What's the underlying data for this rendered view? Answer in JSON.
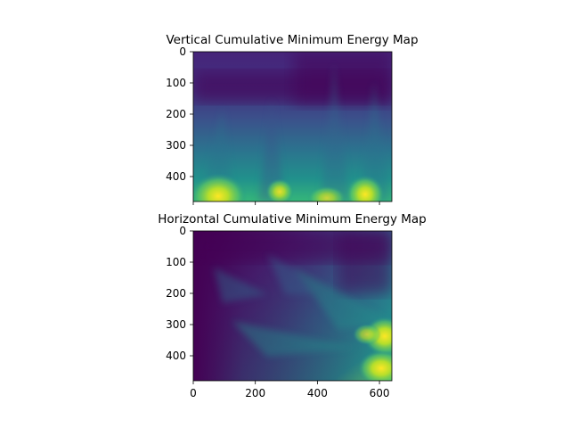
{
  "chart_data": [
    {
      "type": "heatmap",
      "title": "Vertical Cumulative Minimum Energy Map",
      "xlim": [
        0,
        640
      ],
      "ylim": [
        480,
        0
      ],
      "x_ticks": [
        0,
        200,
        400,
        600
      ],
      "x_tick_labels_visible": false,
      "y_ticks": [
        0,
        100,
        200,
        300,
        400
      ],
      "y_tick_labels": [
        "0",
        "100",
        "200",
        "300",
        "400"
      ],
      "colormap": "viridis",
      "color_low": "#440154",
      "color_high": "#fde725",
      "hotspots": [
        {
          "x": 80,
          "y": 470,
          "level": 1.0
        },
        {
          "x": 280,
          "y": 460,
          "level": 0.85
        },
        {
          "x": 450,
          "y": 470,
          "level": 0.8
        },
        {
          "x": 560,
          "y": 470,
          "level": 0.95
        }
      ],
      "low_band_y": [
        60,
        150
      ]
    },
    {
      "type": "heatmap",
      "title": "Horizontal Cumulative Minimum Energy Map",
      "xlim": [
        0,
        640
      ],
      "ylim": [
        480,
        0
      ],
      "x_ticks": [
        0,
        200,
        400,
        600
      ],
      "x_tick_labels": [
        "0",
        "200",
        "400",
        "600"
      ],
      "y_ticks": [
        0,
        100,
        200,
        300,
        400
      ],
      "y_tick_labels": [
        "0",
        "100",
        "200",
        "300",
        "400"
      ],
      "colormap": "viridis",
      "color_low": "#440154",
      "color_high": "#fde725",
      "hotspots": [
        {
          "x": 620,
          "y": 340,
          "level": 1.0
        },
        {
          "x": 600,
          "y": 440,
          "level": 1.0
        },
        {
          "x": 560,
          "y": 330,
          "level": 0.75
        }
      ]
    }
  ]
}
